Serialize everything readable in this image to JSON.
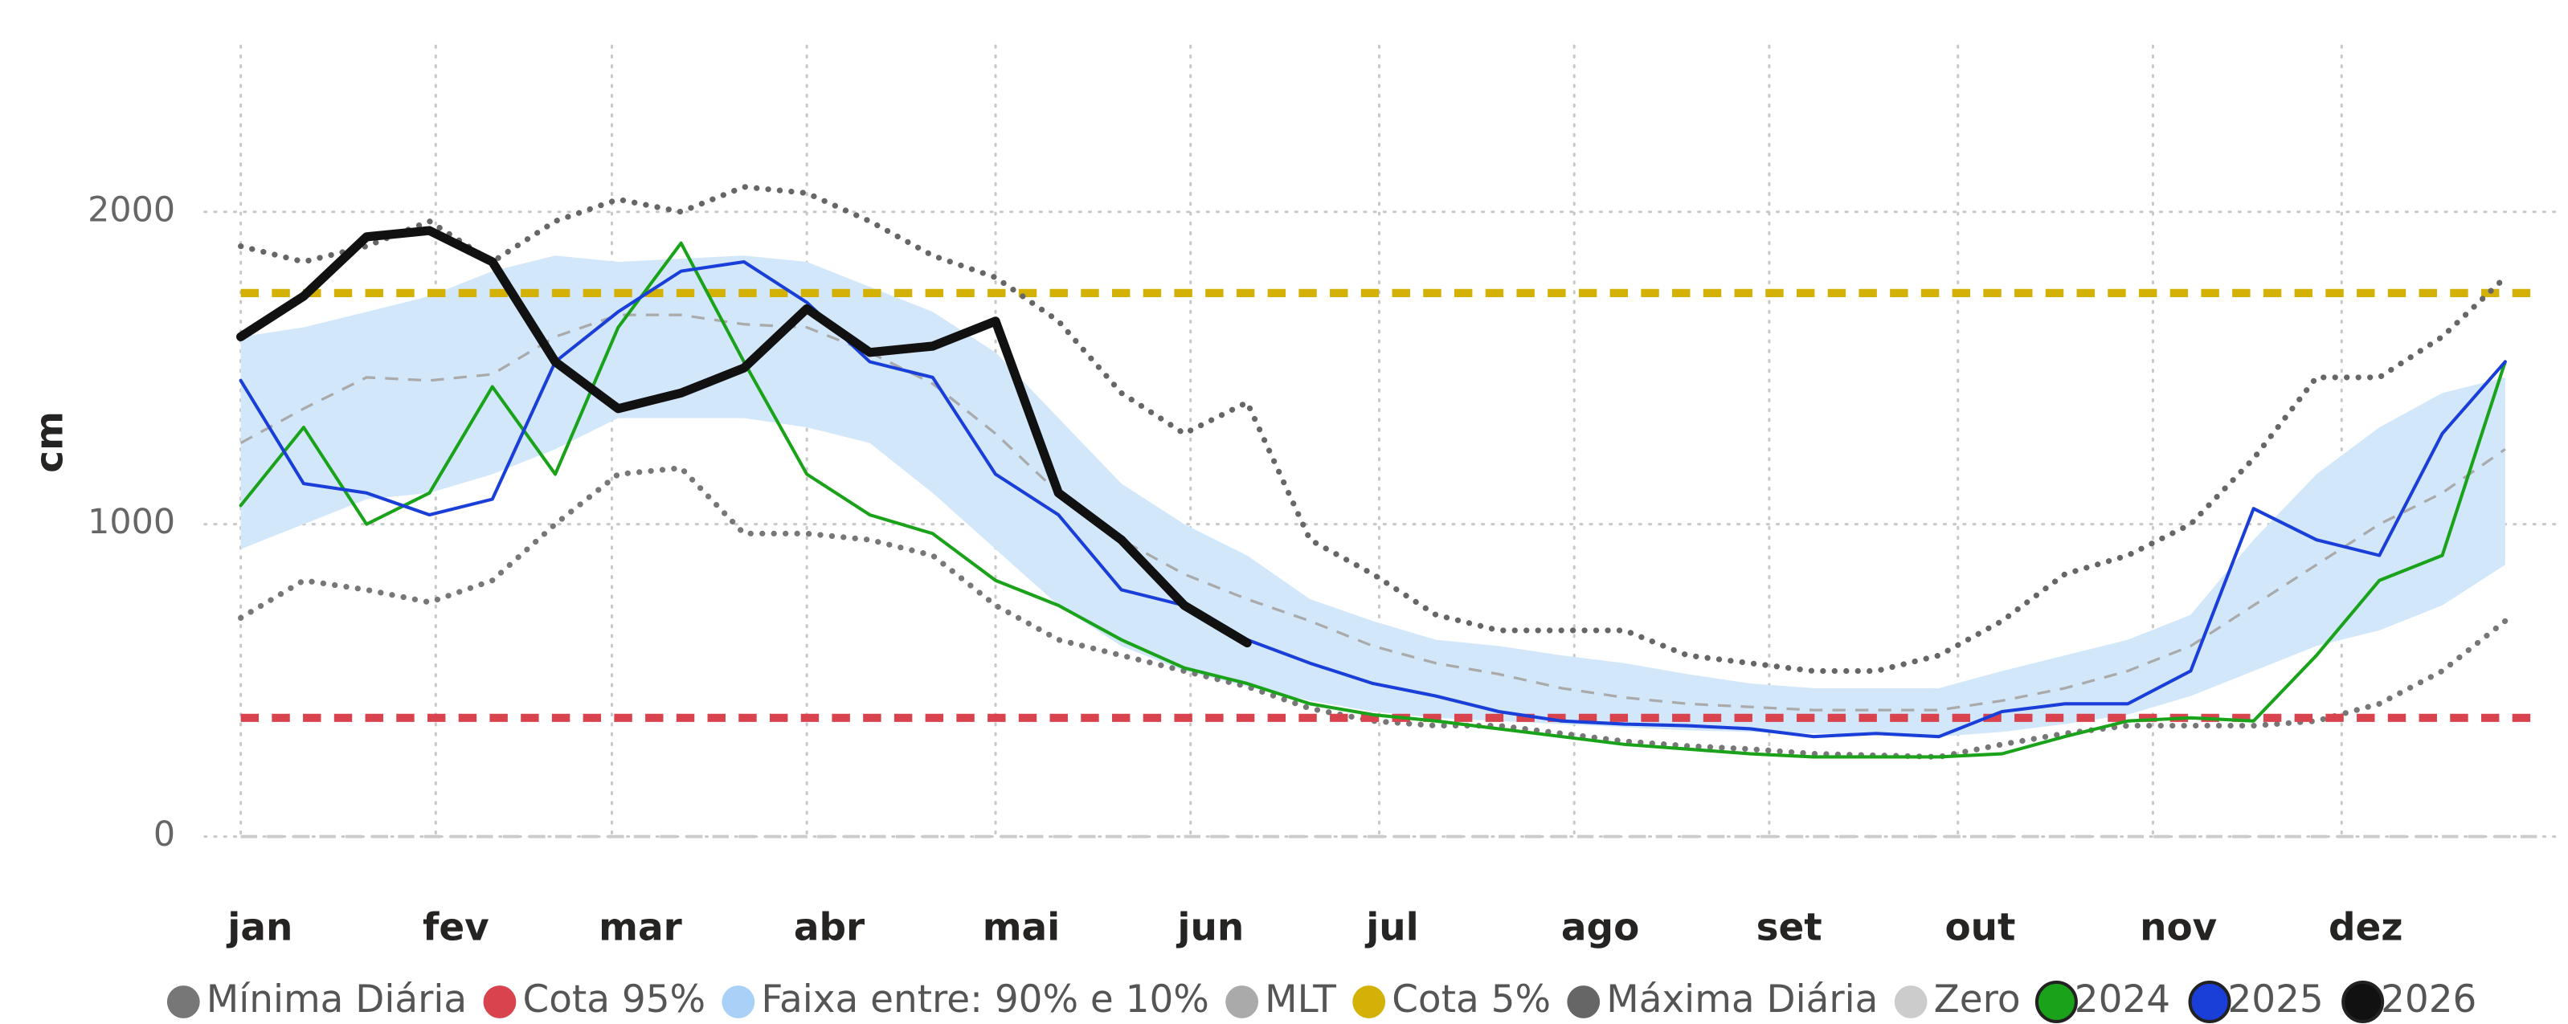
{
  "chart_data": {
    "type": "line",
    "y_label": "cm",
    "xlim": [
      1,
      365
    ],
    "xticks": [
      {
        "value": 1,
        "label": "jan"
      },
      {
        "value": 32,
        "label": "fev"
      },
      {
        "value": 60,
        "label": "mar"
      },
      {
        "value": 91,
        "label": "abr"
      },
      {
        "value": 121,
        "label": "mai"
      },
      {
        "value": 152,
        "label": "jun"
      },
      {
        "value": 182,
        "label": "jul"
      },
      {
        "value": 213,
        "label": "ago"
      },
      {
        "value": 244,
        "label": "set"
      },
      {
        "value": 274,
        "label": "out"
      },
      {
        "value": 305,
        "label": "nov"
      },
      {
        "value": 335,
        "label": "dez"
      }
    ],
    "ylim": [
      0,
      2500
    ],
    "yticks": [
      0,
      1000,
      2000
    ],
    "grid": true,
    "legend": "bottom",
    "x": [
      1,
      11,
      21,
      31,
      41,
      51,
      61,
      71,
      81,
      91,
      101,
      111,
      121,
      131,
      141,
      151,
      161,
      171,
      181,
      191,
      201,
      211,
      221,
      231,
      241,
      251,
      261,
      271,
      281,
      291,
      301,
      311,
      321,
      331,
      341,
      351,
      361
    ],
    "series": [
      {
        "name": "Mínima Diária",
        "color": "#777777",
        "style": "dotted",
        "values": [
          700,
          820,
          790,
          750,
          820,
          1000,
          1160,
          1180,
          970,
          970,
          950,
          900,
          740,
          630,
          580,
          530,
          480,
          410,
          370,
          355,
          355,
          330,
          305,
          290,
          280,
          265,
          260,
          255,
          295,
          330,
          355,
          355,
          355,
          370,
          425,
          530,
          690
        ]
      },
      {
        "name": "Cota 95%",
        "color": "#d9434e",
        "style": "threshold",
        "value": 380
      },
      {
        "name": "Faixa entre: 90% e 10%",
        "color": "#a9d1f7",
        "style": "band",
        "upper": [
          1600,
          1630,
          1680,
          1730,
          1810,
          1860,
          1840,
          1850,
          1860,
          1840,
          1760,
          1680,
          1550,
          1340,
          1130,
          1000,
          900,
          760,
          690,
          630,
          610,
          580,
          555,
          520,
          490,
          475,
          475,
          475,
          530,
          580,
          630,
          710,
          950,
          1160,
          1310,
          1420,
          1470
        ],
        "lower": [
          920,
          1000,
          1080,
          1100,
          1160,
          1240,
          1340,
          1340,
          1340,
          1310,
          1260,
          1100,
          920,
          740,
          610,
          530,
          480,
          435,
          400,
          380,
          370,
          360,
          350,
          340,
          335,
          330,
          325,
          320,
          335,
          360,
          390,
          450,
          530,
          610,
          660,
          740,
          870
        ]
      },
      {
        "name": "MLT",
        "color": "#aaaaaa",
        "style": "dashed",
        "values": [
          1260,
          1370,
          1470,
          1460,
          1480,
          1600,
          1670,
          1670,
          1640,
          1630,
          1550,
          1450,
          1290,
          1100,
          950,
          840,
          760,
          690,
          610,
          555,
          520,
          475,
          445,
          425,
          415,
          405,
          405,
          405,
          435,
          475,
          530,
          610,
          740,
          870,
          1000,
          1100,
          1240
        ]
      },
      {
        "name": "Cota 5%",
        "color": "#d4b106",
        "style": "threshold",
        "value": 1740
      },
      {
        "name": "Máxima Diária",
        "color": "#666666",
        "style": "dotted",
        "values": [
          1890,
          1840,
          1890,
          1970,
          1840,
          1970,
          2040,
          2000,
          2080,
          2060,
          1970,
          1860,
          1790,
          1650,
          1420,
          1290,
          1390,
          950,
          840,
          710,
          660,
          660,
          660,
          580,
          555,
          530,
          530,
          580,
          690,
          840,
          900,
          1000,
          1210,
          1470,
          1470,
          1600,
          1790
        ]
      },
      {
        "name": "Zero",
        "color": "#cccccc",
        "style": "zero",
        "value": 0
      },
      {
        "name": "2024",
        "color": "#1aa31a",
        "style": "solid",
        "values": [
          1060,
          1310,
          1000,
          1100,
          1440,
          1160,
          1630,
          1900,
          1520,
          1160,
          1030,
          970,
          820,
          740,
          630,
          540,
          490,
          425,
          390,
          370,
          345,
          320,
          295,
          280,
          265,
          255,
          255,
          255,
          265,
          320,
          370,
          380,
          370,
          580,
          820,
          900,
          1520
        ]
      },
      {
        "name": "2025",
        "color": "#1a3fd9",
        "style": "solid",
        "values": [
          1460,
          1130,
          1100,
          1030,
          1080,
          1520,
          1680,
          1810,
          1840,
          1710,
          1520,
          1470,
          1160,
          1030,
          790,
          740,
          630,
          555,
          490,
          450,
          400,
          370,
          360,
          355,
          345,
          320,
          330,
          320,
          400,
          425,
          425,
          530,
          1050,
          950,
          900,
          1290,
          1520
        ]
      },
      {
        "name": "2026",
        "color": "#111111",
        "style": "thick",
        "values": [
          1600,
          1730,
          1920,
          1940,
          1840,
          1520,
          1370,
          1420,
          1500,
          1690,
          1550,
          1570,
          1650,
          1100,
          950,
          740,
          620,
          null,
          null,
          null,
          null,
          null,
          null,
          null,
          null,
          null,
          null,
          null,
          null,
          null,
          null,
          null,
          null,
          null,
          null,
          null,
          null
        ]
      }
    ]
  }
}
